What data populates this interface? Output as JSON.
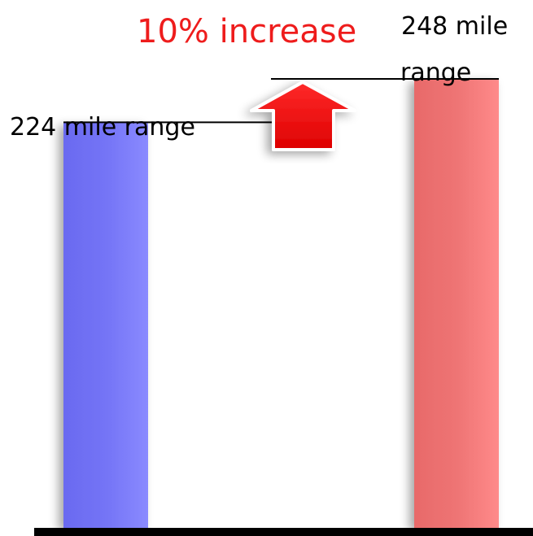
{
  "chart_data": {
    "type": "bar",
    "categories": [
      "",
      ""
    ],
    "values": [
      224,
      248
    ],
    "value_labels": [
      "224 mile range",
      "248 mile range"
    ],
    "value_label_lines": [
      [
        "224 mile range"
      ],
      [
        "248 mile",
        "range"
      ]
    ],
    "ylim": [
      0,
      248
    ],
    "annotation": "10% increase",
    "annotation_arrow": "up-arrow",
    "title": "",
    "xlabel": "",
    "ylabel": "",
    "grid": false,
    "legend": "none",
    "colors": {
      "bar_1": "#7b7bf7",
      "bar_2": "#f07a7a",
      "annotation": "#ee1c1c",
      "arrow": "#ee1111",
      "axis": "#000000"
    }
  }
}
